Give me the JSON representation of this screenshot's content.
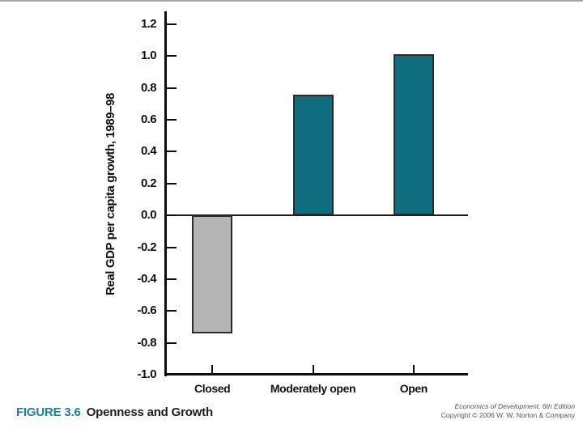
{
  "slide": {
    "caption_label": "FIGURE 3.6",
    "caption_title": "Openness and Growth",
    "credit_line1": "Economics of Development, 6th Edition",
    "credit_line2": "Copyright © 2006 W. W. Norton & Company"
  },
  "colors": {
    "teal": "#0e6d7e",
    "gray_bar": "#b4b4b4",
    "bar_border": "#2b2b2b",
    "axis": "#0d0d0d",
    "caption_teal": "#1f7f94",
    "credit_text": "#555555"
  },
  "chart_data": {
    "type": "bar",
    "title": "",
    "xlabel": "",
    "ylabel": "Real GDP per capita growth, 1989–98",
    "categories": [
      "Closed",
      "Moderately open",
      "Open"
    ],
    "values": [
      -0.74,
      0.76,
      1.01
    ],
    "bar_color_keys": [
      "gray_bar",
      "teal",
      "teal"
    ],
    "ylim": [
      -1.0,
      1.2
    ],
    "ytick_step": 0.2,
    "yticks": [
      "1.2",
      "1.0",
      "0.8",
      "0.6",
      "0.4",
      "0.2",
      "0.0",
      "-0.2",
      "-0.4",
      "-0.6",
      "-0.8",
      "-1.0"
    ],
    "grid": false,
    "legend_position": "none",
    "zero_baseline": true
  }
}
